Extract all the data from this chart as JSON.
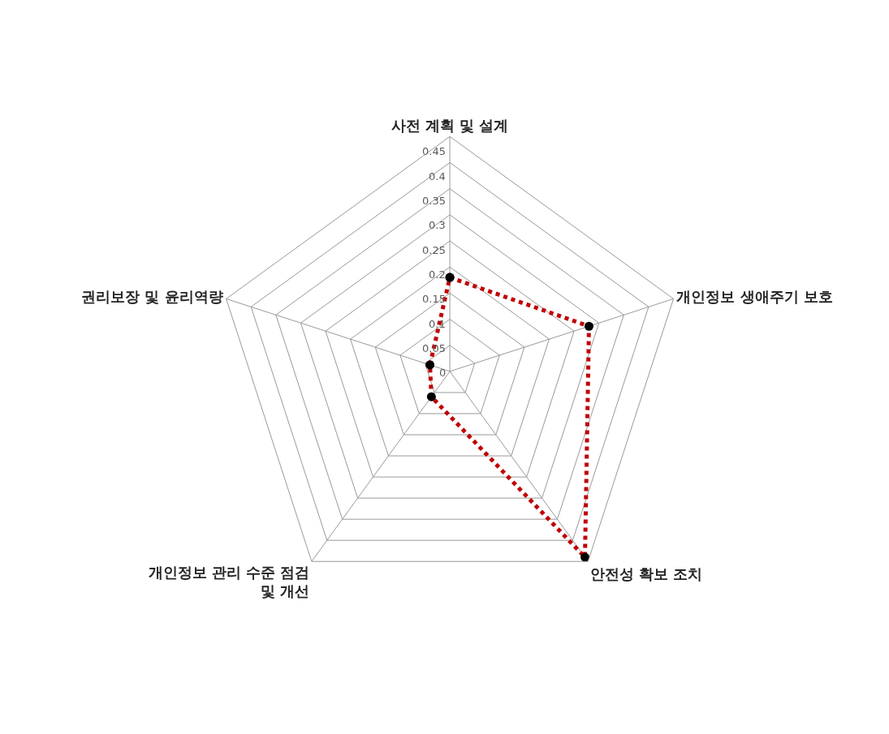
{
  "chart_data": {
    "type": "radar",
    "categories": [
      "사전 계획 및 설계",
      "개인정보 생애주기 보호",
      "안전성 확보 조치",
      "개인정보 관리 수준 점검 및 개선",
      "권리보장 및 윤리역량"
    ],
    "series": [
      {
        "color": "#c00000",
        "colors": [
          "#000000",
          "#000000",
          "#000000",
          "#000000",
          "#000000"
        ],
        "values": [
          0.18,
          0.28,
          0.44,
          0.06,
          0.04
        ]
      }
    ],
    "ylim": [
      0,
      0.45
    ],
    "yticks": [
      0,
      0.05,
      0.1,
      0.15,
      0.2,
      0.25,
      0.3,
      0.35,
      0.4,
      0.45
    ],
    "grid": true,
    "marker": "circle",
    "line_style": "dotted"
  }
}
